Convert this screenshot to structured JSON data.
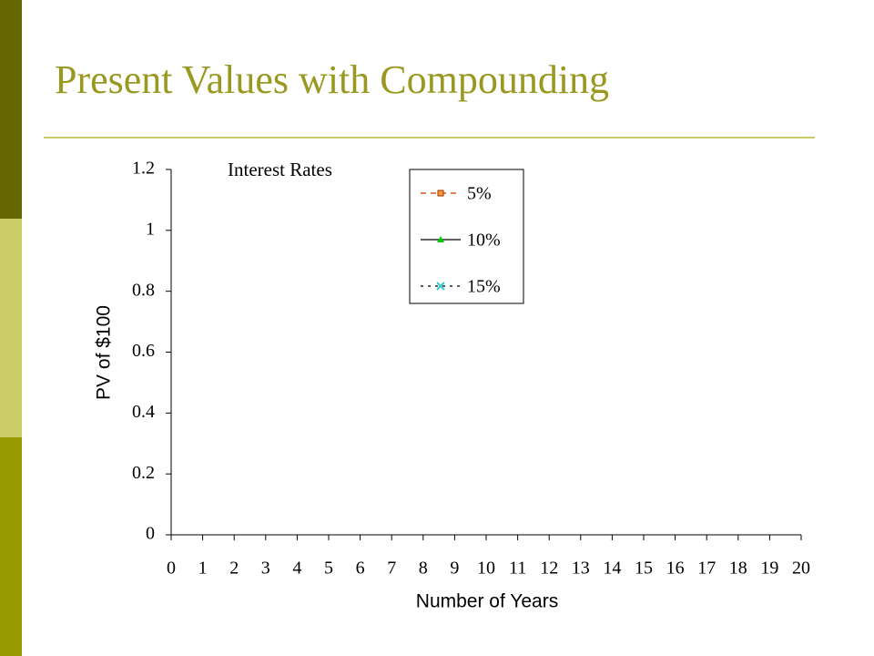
{
  "chart_data": {
    "type": "line",
    "title": "Present Values with Compounding",
    "legend_title": "Interest Rates",
    "xlabel": "Number of Years",
    "ylabel": "PV of $100",
    "x": [
      0,
      1,
      2,
      3,
      4,
      5,
      6,
      7,
      8,
      9,
      10,
      11,
      12,
      13,
      14,
      15,
      16,
      17,
      18,
      19,
      20
    ],
    "series": [
      {
        "name": "5%",
        "color": "#cc3300",
        "marker_color": "#ff9933",
        "linestyle": "dashed",
        "marker": "square",
        "values": [
          null,
          null,
          null,
          null,
          null,
          null,
          null,
          null,
          null,
          null,
          null,
          null,
          null,
          null,
          null,
          null,
          null,
          null,
          null,
          null,
          null
        ]
      },
      {
        "name": "10%",
        "color": "#000000",
        "marker_color": "#00cc00",
        "linestyle": "solid",
        "marker": "triangle",
        "values": [
          null,
          null,
          null,
          null,
          null,
          null,
          null,
          null,
          null,
          null,
          null,
          null,
          null,
          null,
          null,
          null,
          null,
          null,
          null,
          null,
          null
        ]
      },
      {
        "name": "15%",
        "color": "#000000",
        "marker_color": "#33cccc",
        "linestyle": "dotted",
        "marker": "x",
        "values": [
          null,
          null,
          null,
          null,
          null,
          null,
          null,
          null,
          null,
          null,
          null,
          null,
          null,
          null,
          null,
          null,
          null,
          null,
          null,
          null,
          null
        ]
      }
    ],
    "xlim": [
      0,
      20
    ],
    "xticks": [
      0,
      1,
      2,
      3,
      4,
      5,
      6,
      7,
      8,
      9,
      10,
      11,
      12,
      13,
      14,
      15,
      16,
      17,
      18,
      19,
      20
    ],
    "ylim": [
      0,
      1.2
    ],
    "yticks": [
      0,
      0.2,
      0.4,
      0.6,
      0.8,
      1,
      1.2
    ],
    "grid": false
  }
}
